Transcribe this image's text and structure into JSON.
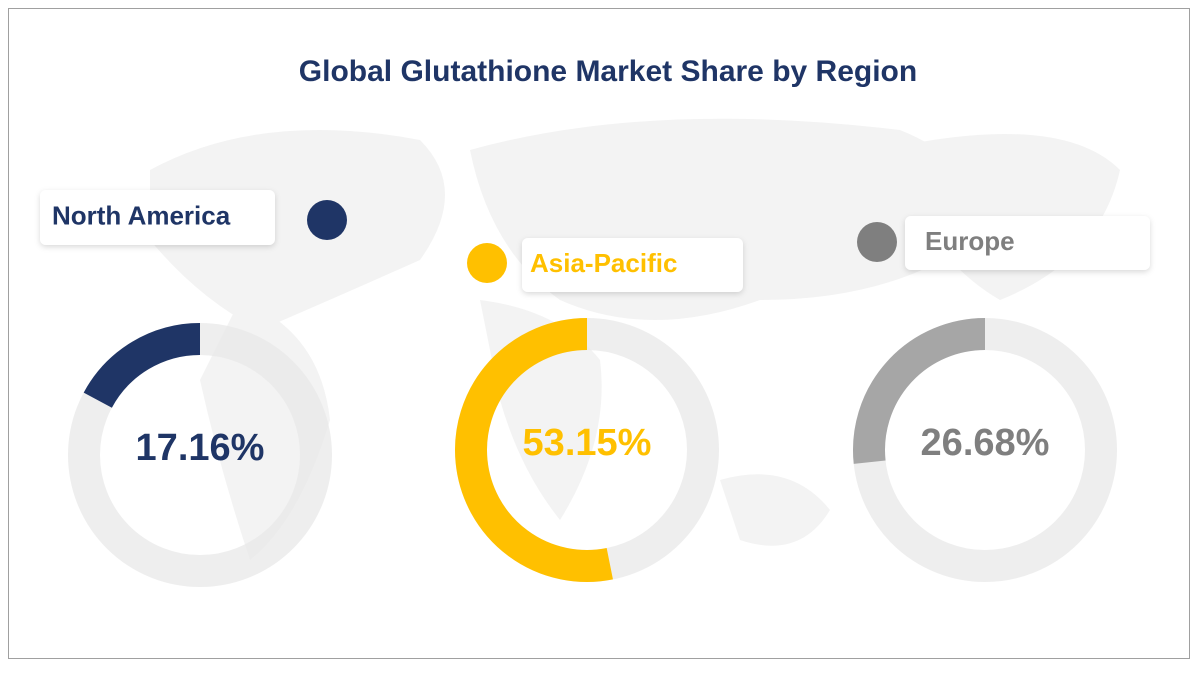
{
  "title": "Global  Glutathione Market Share by Region",
  "chart_data": [
    {
      "type": "donut",
      "categories": [
        "North America"
      ],
      "values": [
        17.16
      ],
      "value_labels": [
        "17.16%"
      ],
      "color": "#1f3566",
      "text_color": "#1f3566"
    },
    {
      "type": "donut",
      "categories": [
        "Asia-Pacific"
      ],
      "values": [
        53.15
      ],
      "value_labels": [
        "53.15%"
      ],
      "color": "#ffc000",
      "text_color": "#ffc000"
    },
    {
      "type": "donut",
      "categories": [
        "Europe"
      ],
      "values": [
        26.68
      ],
      "value_labels": [
        "26.68%"
      ],
      "color": "#a6a6a6",
      "text_color": "#7f7f7f"
    }
  ]
}
